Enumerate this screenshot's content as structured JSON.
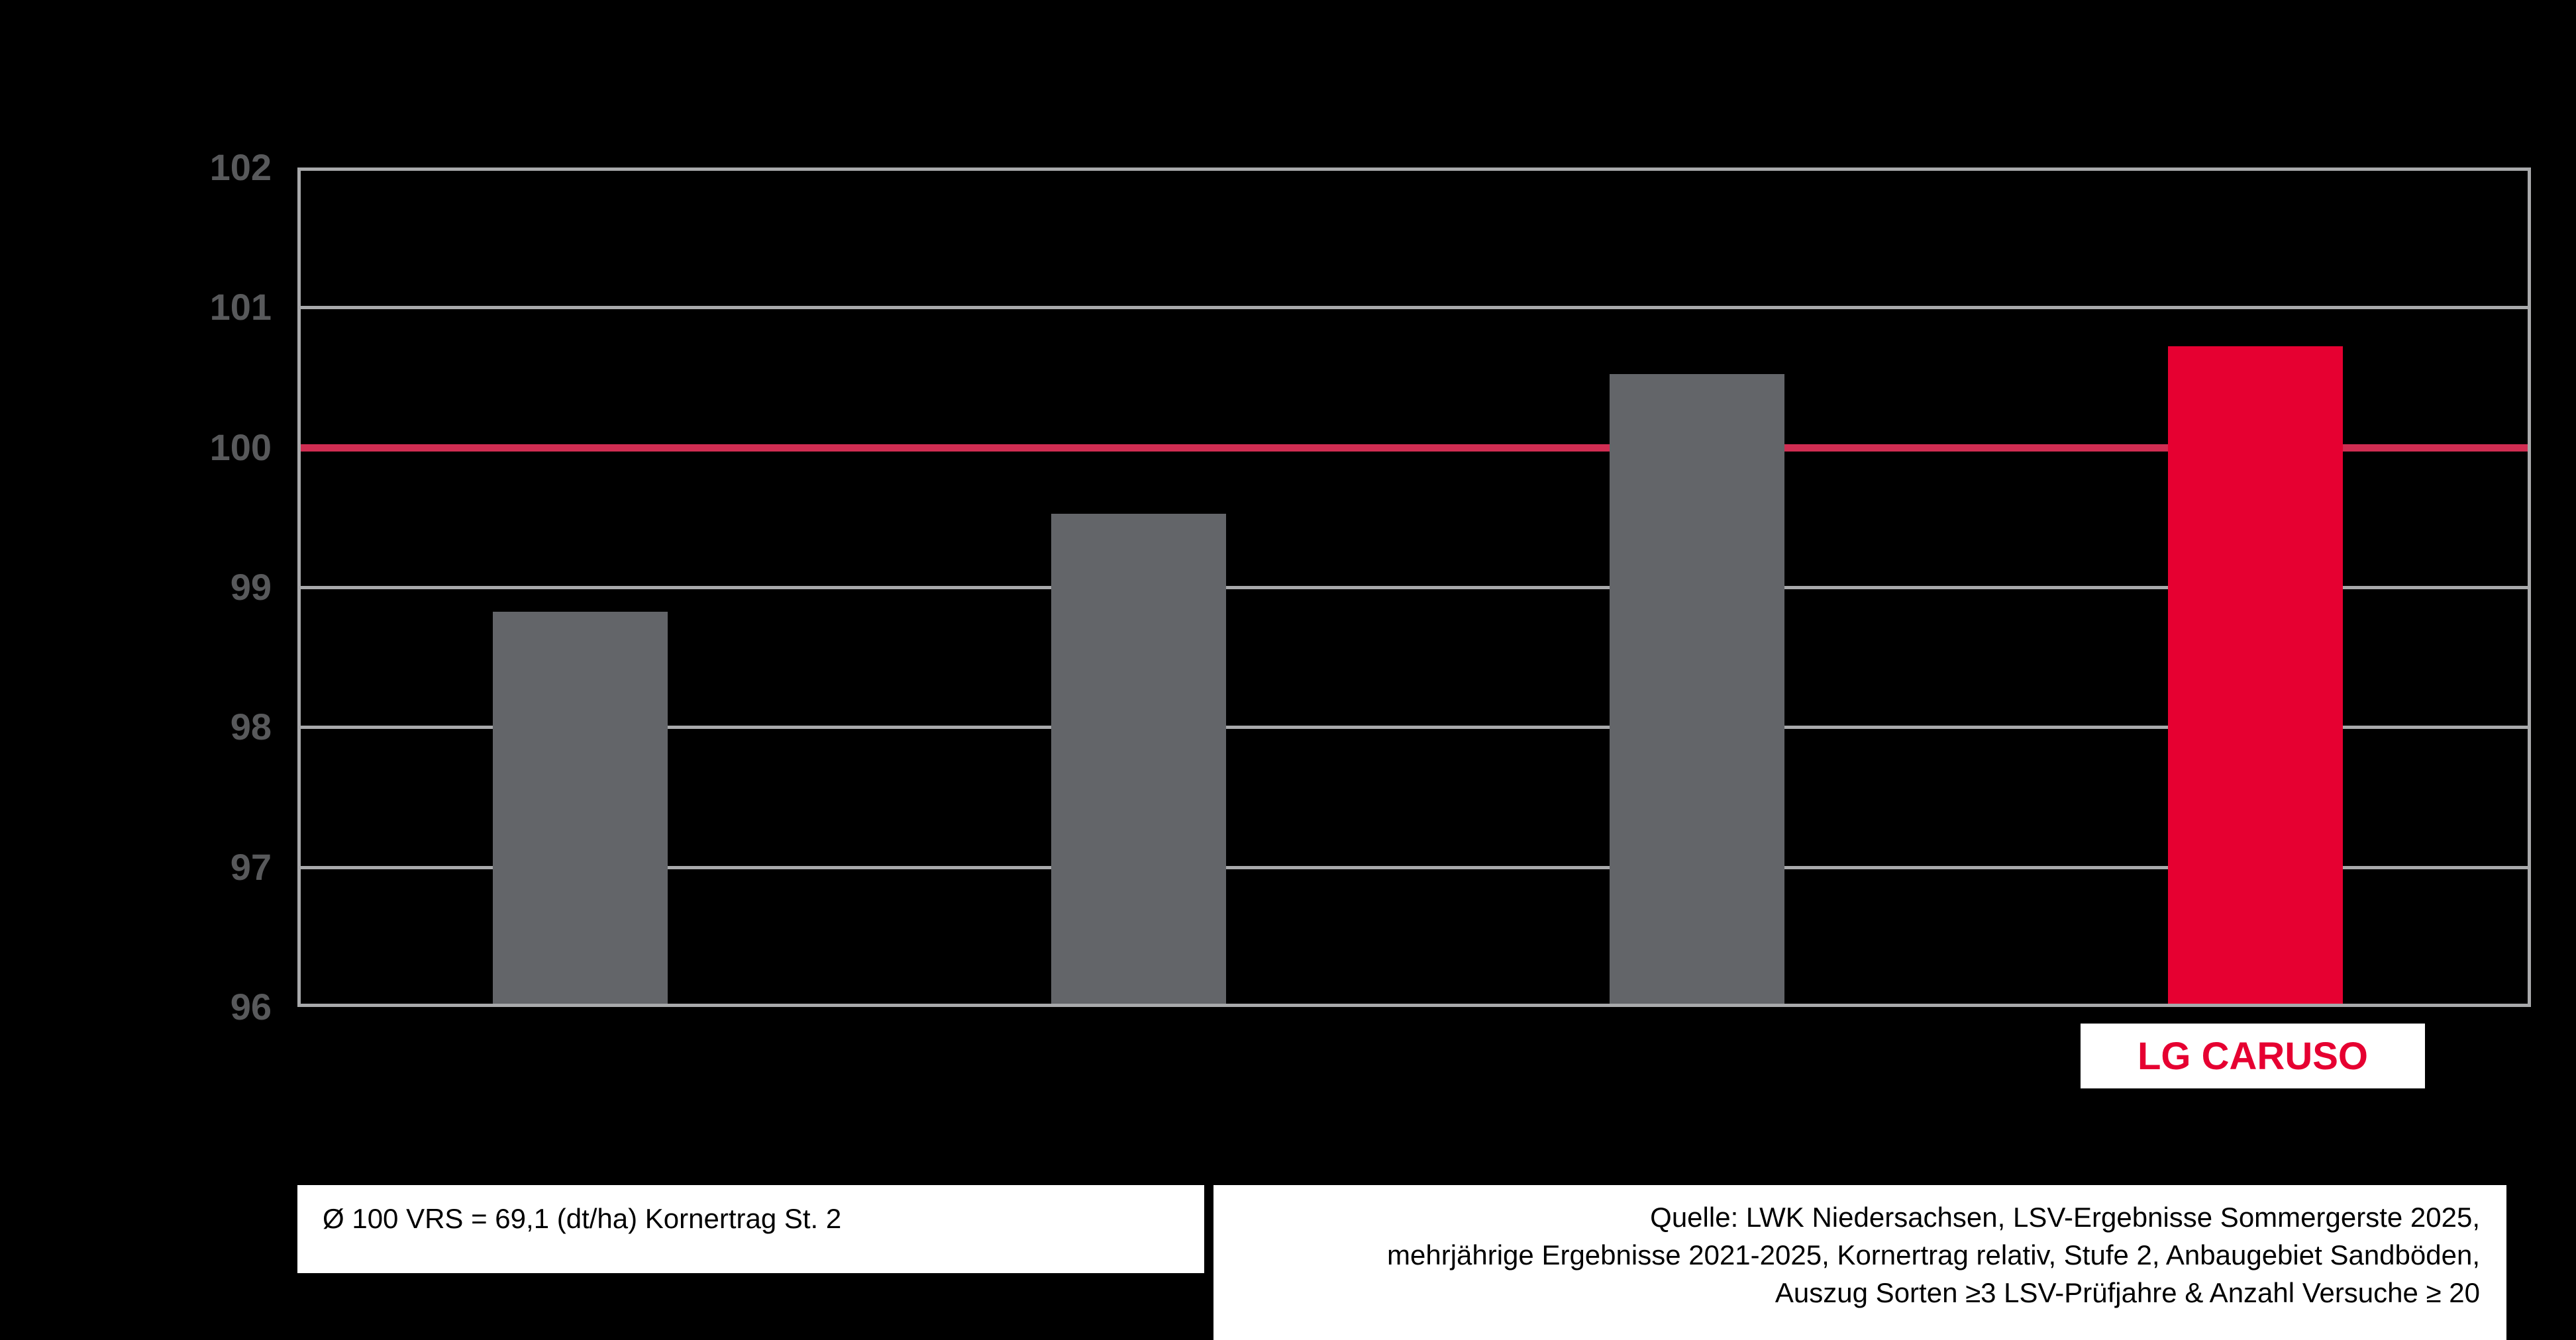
{
  "chart_data": {
    "type": "bar",
    "title": "",
    "categories": [
      "",
      "",
      "",
      "LG CARUSO"
    ],
    "values": [
      98.8,
      99.5,
      100.5,
      100.7
    ],
    "ylim": [
      96,
      102
    ],
    "yticks": [
      96,
      97,
      98,
      99,
      100,
      101,
      102
    ],
    "reference_line": 100,
    "highlight_index": 3,
    "grid": "horizontal-gridlines-on",
    "legend": "none",
    "xlabel": "",
    "ylabel": "",
    "colors": {
      "bar": "#636569",
      "highlight_bar": "#E60031",
      "reference_line": "#D02D52",
      "gridline": "#A8A9AB",
      "tick_label": "#58595B",
      "background": "#000000"
    }
  },
  "highlight_label": {
    "text": "LG CARUSO",
    "color": "#E60031"
  },
  "footnote_left": {
    "text": "Ø 100 VRS = 69,1 (dt/ha) Kornertrag St. 2"
  },
  "source": {
    "lines": [
      "Quelle: LWK Niedersachsen, LSV-Ergebnisse Sommergerste 2025,",
      "mehrjährige Ergebnisse 2021-2025, Kornertrag relativ, Stufe 2, Anbaugebiet Sandböden,",
      "Auszug Sorten ≥3 LSV-Prüfjahre & Anzahl Versuche ≥ 20"
    ]
  }
}
